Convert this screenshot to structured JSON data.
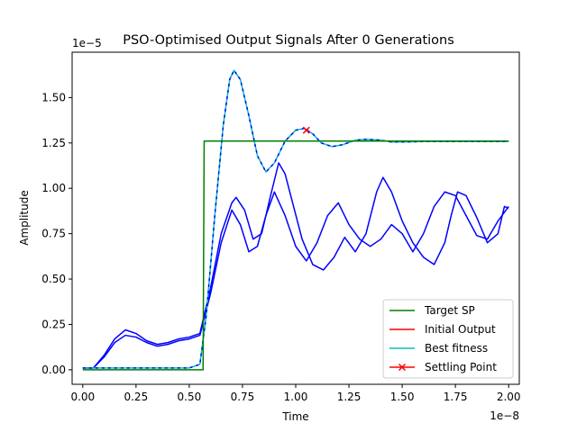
{
  "chart_data": {
    "type": "line",
    "title": "PSO-Optimised Output Signals After 0 Generations",
    "xlabel": "Time",
    "ylabel": "Amplitude",
    "x_offset_label": "1e−8",
    "y_offset_label": "1e−5",
    "x_scale": 1e-08,
    "y_scale": 1e-05,
    "xlim": [
      -0.05,
      2.05
    ],
    "ylim": [
      -0.08,
      1.75
    ],
    "x_ticks": [
      0.0,
      0.25,
      0.5,
      0.75,
      1.0,
      1.25,
      1.5,
      1.75,
      2.0
    ],
    "x_tick_labels": [
      "0.00",
      "0.25",
      "0.50",
      "0.75",
      "1.00",
      "1.25",
      "1.50",
      "1.75",
      "2.00"
    ],
    "y_ticks": [
      0.0,
      0.25,
      0.5,
      0.75,
      1.0,
      1.25,
      1.5
    ],
    "y_tick_labels": [
      "0.00",
      "0.25",
      "0.50",
      "0.75",
      "1.00",
      "1.25",
      "1.50"
    ],
    "grid": false,
    "legend_position": "lower right",
    "legend": [
      {
        "label": "Target SP",
        "color": "#008000",
        "marker": "none"
      },
      {
        "label": "Initial Output",
        "color": "#ff0000",
        "marker": "none"
      },
      {
        "label": "Best fitness",
        "color": "#00bfbf",
        "marker": "none"
      },
      {
        "label": "Settling Point",
        "color": "#ff0000",
        "marker": "x"
      }
    ],
    "series": [
      {
        "key": "blue_1",
        "color": "#0000ff",
        "points": [
          [
            0,
            0.01
          ],
          [
            0.05,
            0.01
          ],
          [
            0.1,
            0.08
          ],
          [
            0.15,
            0.17
          ],
          [
            0.2,
            0.22
          ],
          [
            0.25,
            0.2
          ],
          [
            0.3,
            0.16
          ],
          [
            0.35,
            0.14
          ],
          [
            0.4,
            0.15
          ],
          [
            0.45,
            0.17
          ],
          [
            0.5,
            0.18
          ],
          [
            0.55,
            0.2
          ],
          [
            0.6,
            0.45
          ],
          [
            0.65,
            0.75
          ],
          [
            0.7,
            0.92
          ],
          [
            0.72,
            0.95
          ],
          [
            0.76,
            0.88
          ],
          [
            0.8,
            0.72
          ],
          [
            0.84,
            0.75
          ],
          [
            0.88,
            0.95
          ],
          [
            0.92,
            1.14
          ],
          [
            0.95,
            1.08
          ],
          [
            0.99,
            0.9
          ],
          [
            1.03,
            0.72
          ],
          [
            1.08,
            0.58
          ],
          [
            1.13,
            0.55
          ],
          [
            1.18,
            0.62
          ],
          [
            1.23,
            0.73
          ],
          [
            1.28,
            0.65
          ],
          [
            1.33,
            0.75
          ],
          [
            1.38,
            0.98
          ],
          [
            1.41,
            1.06
          ],
          [
            1.45,
            0.98
          ],
          [
            1.5,
            0.82
          ],
          [
            1.55,
            0.7
          ],
          [
            1.6,
            0.62
          ],
          [
            1.65,
            0.58
          ],
          [
            1.7,
            0.7
          ],
          [
            1.73,
            0.85
          ],
          [
            1.76,
            0.98
          ],
          [
            1.8,
            0.96
          ],
          [
            1.85,
            0.84
          ],
          [
            1.9,
            0.7
          ],
          [
            1.95,
            0.75
          ],
          [
            1.98,
            0.9
          ],
          [
            2.0,
            0.89
          ]
        ]
      },
      {
        "key": "blue_2",
        "color": "#0000ff",
        "points": [
          [
            0,
            0.01
          ],
          [
            0.05,
            0.01
          ],
          [
            0.1,
            0.07
          ],
          [
            0.15,
            0.15
          ],
          [
            0.2,
            0.19
          ],
          [
            0.25,
            0.18
          ],
          [
            0.3,
            0.15
          ],
          [
            0.35,
            0.13
          ],
          [
            0.4,
            0.14
          ],
          [
            0.45,
            0.16
          ],
          [
            0.5,
            0.17
          ],
          [
            0.55,
            0.19
          ],
          [
            0.6,
            0.42
          ],
          [
            0.65,
            0.7
          ],
          [
            0.7,
            0.88
          ],
          [
            0.74,
            0.8
          ],
          [
            0.78,
            0.65
          ],
          [
            0.82,
            0.68
          ],
          [
            0.86,
            0.85
          ],
          [
            0.9,
            0.98
          ],
          [
            0.95,
            0.85
          ],
          [
            1.0,
            0.68
          ],
          [
            1.05,
            0.6
          ],
          [
            1.1,
            0.7
          ],
          [
            1.15,
            0.85
          ],
          [
            1.2,
            0.92
          ],
          [
            1.25,
            0.8
          ],
          [
            1.3,
            0.72
          ],
          [
            1.35,
            0.68
          ],
          [
            1.4,
            0.72
          ],
          [
            1.45,
            0.8
          ],
          [
            1.5,
            0.75
          ],
          [
            1.55,
            0.65
          ],
          [
            1.6,
            0.75
          ],
          [
            1.65,
            0.9
          ],
          [
            1.7,
            0.98
          ],
          [
            1.75,
            0.96
          ],
          [
            1.8,
            0.85
          ],
          [
            1.85,
            0.74
          ],
          [
            1.9,
            0.72
          ],
          [
            1.95,
            0.82
          ],
          [
            2.0,
            0.9
          ]
        ]
      },
      {
        "key": "best_fitness",
        "color": "#00bfbf",
        "overlay_color": "#0000ff",
        "points": [
          [
            0,
            0.01
          ],
          [
            0.5,
            0.01
          ],
          [
            0.55,
            0.03
          ],
          [
            0.58,
            0.3
          ],
          [
            0.62,
            0.85
          ],
          [
            0.66,
            1.35
          ],
          [
            0.69,
            1.6
          ],
          [
            0.71,
            1.65
          ],
          [
            0.74,
            1.6
          ],
          [
            0.78,
            1.4
          ],
          [
            0.82,
            1.18
          ],
          [
            0.86,
            1.09
          ],
          [
            0.9,
            1.14
          ],
          [
            0.95,
            1.26
          ],
          [
            1.0,
            1.32
          ],
          [
            1.04,
            1.33
          ],
          [
            1.08,
            1.3
          ],
          [
            1.12,
            1.25
          ],
          [
            1.17,
            1.23
          ],
          [
            1.22,
            1.24
          ],
          [
            1.28,
            1.265
          ],
          [
            1.33,
            1.27
          ],
          [
            1.4,
            1.265
          ],
          [
            1.45,
            1.255
          ],
          [
            1.5,
            1.255
          ],
          [
            1.6,
            1.258
          ],
          [
            1.7,
            1.258
          ],
          [
            1.8,
            1.258
          ],
          [
            1.9,
            1.258
          ],
          [
            2.0,
            1.258
          ]
        ]
      },
      {
        "key": "target_sp",
        "color": "#008000",
        "points": [
          [
            0,
            0.0
          ],
          [
            0.565,
            0.0
          ],
          [
            0.57,
            1.26
          ],
          [
            2.0,
            1.26
          ]
        ]
      }
    ],
    "settling_point": {
      "x": 1.05,
      "y": 1.32,
      "color": "#ff0000"
    }
  }
}
